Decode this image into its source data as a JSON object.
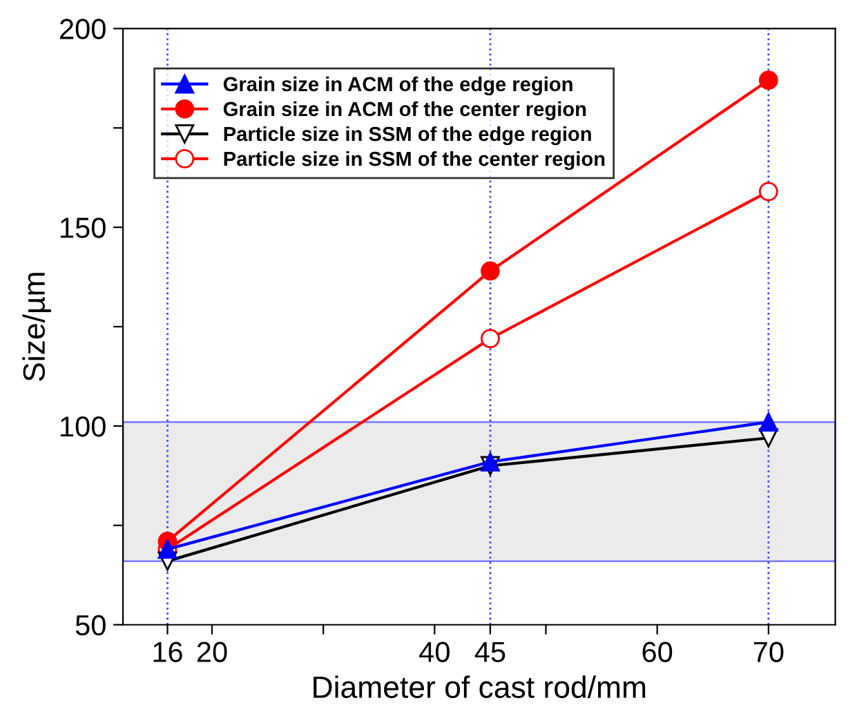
{
  "chart_data": {
    "type": "line",
    "xlabel": "Diameter of cast rod/mm",
    "ylabel": "Size/µm",
    "xlim": [
      12,
      76
    ],
    "ylim": [
      50,
      200
    ],
    "xticks": [
      16,
      20,
      {
        "value": 30,
        "label": null
      },
      40,
      45,
      {
        "value": 50,
        "label": null
      },
      60,
      70
    ],
    "yticks": [
      50,
      {
        "value": 75,
        "label": null
      },
      100,
      {
        "value": 125,
        "label": null
      },
      150,
      {
        "value": 175,
        "label": null
      },
      200
    ],
    "x": [
      16,
      45,
      70
    ],
    "series": [
      {
        "name": "Grain size in ACM of the edge region",
        "color": "#0000ff",
        "marker": "triangle",
        "values": [
          69,
          91,
          101
        ]
      },
      {
        "name": "Grain size in ACM of the center region",
        "color": "#ff0000",
        "marker": "circle",
        "values": [
          71,
          139,
          187
        ]
      },
      {
        "name": "Particle size in SSM of the edge region",
        "color": "#000000",
        "marker": "triangle_down",
        "values": [
          66,
          90,
          97
        ]
      },
      {
        "name": "Particle size in SSM of the center region",
        "color": "#ff0000",
        "marker": "circle",
        "values": [
          69,
          122,
          159
        ]
      }
    ],
    "ref_lines": [
      {
        "axis": "x",
        "value": 16,
        "color": "#4444ff",
        "line_style": "dotted"
      },
      {
        "axis": "x",
        "value": 45,
        "color": "#4444ff",
        "line_style": "dotted"
      },
      {
        "axis": "x",
        "value": 70,
        "color": "#4444ff",
        "line_style": "dotted"
      }
    ],
    "bands": [
      {
        "axis": "y",
        "from": 66,
        "to": 101,
        "color": "#ebebeb"
      }
    ],
    "grid": false,
    "legend": "top left",
    "line_style": "solid"
  }
}
